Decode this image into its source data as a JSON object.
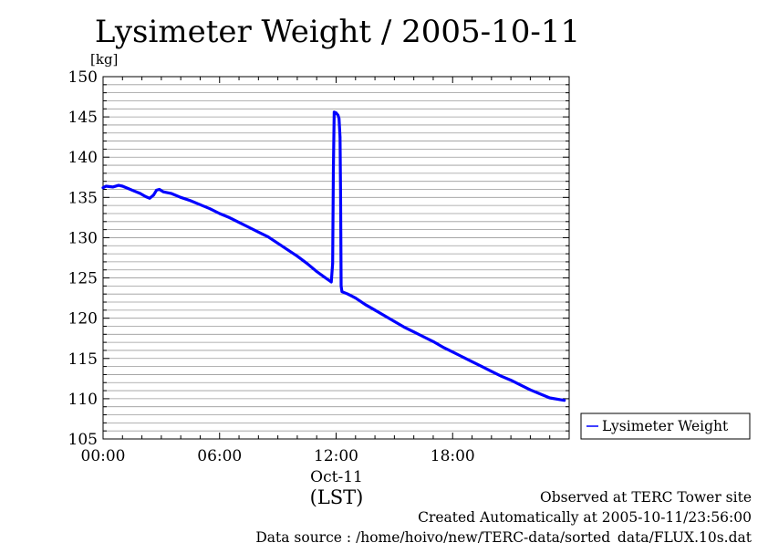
{
  "chart_data": {
    "type": "line",
    "title": "Lysimeter Weight / 2005-10-11",
    "ylabel": "[kg]",
    "xlabel": "(LST)",
    "date_label": "Oct-11",
    "xlim": [
      0,
      24
    ],
    "ylim": [
      105,
      150
    ],
    "y_ticks": [
      "105",
      "110",
      "115",
      "120",
      "125",
      "130",
      "135",
      "140",
      "145",
      "150"
    ],
    "x_ticks": [
      {
        "hour": 0,
        "label": "00:00"
      },
      {
        "hour": 6,
        "label": "06:00"
      },
      {
        "hour": 12,
        "label": "12:00"
      },
      {
        "hour": 18,
        "label": "18:00"
      }
    ],
    "grid": true,
    "legend_position": "right",
    "series": [
      {
        "name": "Lysimeter Weight",
        "color": "#0000ff",
        "points": [
          [
            0.0,
            136.2
          ],
          [
            0.15,
            136.4
          ],
          [
            0.5,
            136.3
          ],
          [
            0.8,
            136.5
          ],
          [
            1.0,
            136.4
          ],
          [
            1.3,
            136.1
          ],
          [
            1.6,
            135.8
          ],
          [
            1.9,
            135.5
          ],
          [
            2.2,
            135.1
          ],
          [
            2.4,
            134.9
          ],
          [
            2.6,
            135.3
          ],
          [
            2.75,
            135.9
          ],
          [
            2.9,
            136.0
          ],
          [
            3.1,
            135.7
          ],
          [
            3.5,
            135.5
          ],
          [
            4.0,
            135.0
          ],
          [
            4.5,
            134.6
          ],
          [
            5.0,
            134.1
          ],
          [
            5.5,
            133.6
          ],
          [
            6.0,
            133.0
          ],
          [
            6.5,
            132.5
          ],
          [
            7.0,
            131.9
          ],
          [
            7.5,
            131.3
          ],
          [
            8.0,
            130.7
          ],
          [
            8.5,
            130.1
          ],
          [
            9.0,
            129.3
          ],
          [
            9.5,
            128.5
          ],
          [
            10.0,
            127.7
          ],
          [
            10.5,
            126.8
          ],
          [
            11.0,
            125.8
          ],
          [
            11.4,
            125.1
          ],
          [
            11.75,
            124.5
          ],
          [
            11.82,
            126.8
          ],
          [
            11.86,
            138.5
          ],
          [
            11.9,
            145.6
          ],
          [
            12.0,
            145.5
          ],
          [
            12.1,
            145.2
          ],
          [
            12.15,
            144.8
          ],
          [
            12.2,
            142.5
          ],
          [
            12.23,
            135.5
          ],
          [
            12.26,
            124.0
          ],
          [
            12.3,
            123.3
          ],
          [
            12.6,
            123.0
          ],
          [
            13.0,
            122.5
          ],
          [
            13.5,
            121.7
          ],
          [
            14.0,
            121.0
          ],
          [
            14.5,
            120.3
          ],
          [
            15.0,
            119.6
          ],
          [
            15.5,
            118.9
          ],
          [
            16.0,
            118.3
          ],
          [
            16.5,
            117.7
          ],
          [
            17.0,
            117.1
          ],
          [
            17.5,
            116.4
          ],
          [
            18.0,
            115.8
          ],
          [
            18.5,
            115.2
          ],
          [
            19.0,
            114.6
          ],
          [
            19.5,
            114.0
          ],
          [
            20.0,
            113.4
          ],
          [
            20.5,
            112.8
          ],
          [
            21.0,
            112.3
          ],
          [
            21.5,
            111.7
          ],
          [
            22.0,
            111.1
          ],
          [
            22.5,
            110.6
          ],
          [
            23.0,
            110.1
          ],
          [
            23.5,
            109.9
          ],
          [
            23.75,
            109.8
          ]
        ]
      }
    ]
  },
  "footer": {
    "site": "Observed at TERC Tower site",
    "created": "Created Automatically at 2005-10-11/23:56:00",
    "source": "Data source : /home/hoivo/new/TERC-data/sorted_data/FLUX.10s.dat"
  }
}
